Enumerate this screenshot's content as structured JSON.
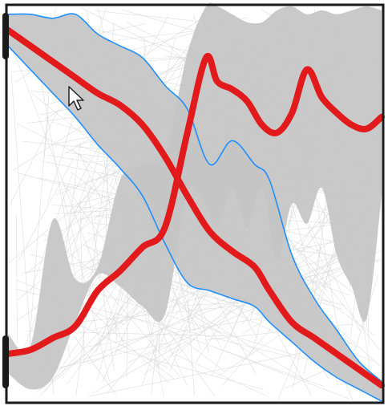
{
  "colors": {
    "background": "#ffffff",
    "frame": "#1a1a1a",
    "band_fill": "#c4c4c4",
    "band_edge": "#1e90ff",
    "mean_line": "#e31a1c",
    "background_traces": "#dadada",
    "edge_handles": "#1a1a1a"
  },
  "chart_data": {
    "type": "line",
    "title": "",
    "xlabel": "",
    "ylabel": "",
    "grid": false,
    "legend": "none",
    "xlim": [
      0,
      1
    ],
    "ylim": [
      0,
      1
    ],
    "axis_ticks": "none",
    "pointer": "arrow-cursor",
    "edge_handles": [
      "left-top",
      "left-bottom"
    ],
    "background_traces": {
      "count": 300
    },
    "series": [
      {
        "role": "descending-mean",
        "x": [
          0.0,
          0.06,
          0.12,
          0.18,
          0.24,
          0.3,
          0.36,
          0.42,
          0.48,
          0.54,
          0.6,
          0.66,
          0.7,
          0.76,
          0.82,
          0.88,
          0.94,
          1.0
        ],
        "y": [
          0.94,
          0.9,
          0.86,
          0.82,
          0.78,
          0.75,
          0.7,
          0.62,
          0.52,
          0.43,
          0.38,
          0.34,
          0.28,
          0.2,
          0.16,
          0.12,
          0.08,
          0.04
        ],
        "lower": [
          0.9,
          0.84,
          0.78,
          0.72,
          0.65,
          0.59,
          0.52,
          0.4,
          0.3,
          0.28,
          0.26,
          0.24,
          0.2,
          0.15,
          0.1,
          0.06,
          0.03,
          0.0
        ],
        "upper": [
          0.98,
          0.98,
          0.97,
          0.98,
          0.93,
          0.9,
          0.87,
          0.8,
          0.74,
          0.6,
          0.66,
          0.6,
          0.56,
          0.37,
          0.26,
          0.18,
          0.1,
          0.05
        ]
      },
      {
        "role": "ascending-mean",
        "x": [
          0.0,
          0.06,
          0.12,
          0.18,
          0.24,
          0.3,
          0.36,
          0.42,
          0.48,
          0.53,
          0.56,
          0.6,
          0.64,
          0.68,
          0.72,
          0.76,
          0.8,
          0.84,
          0.88,
          0.92,
          0.96,
          1.0
        ],
        "y": [
          0.12,
          0.13,
          0.16,
          0.19,
          0.28,
          0.33,
          0.39,
          0.44,
          0.68,
          0.87,
          0.81,
          0.79,
          0.76,
          0.7,
          0.68,
          0.73,
          0.84,
          0.77,
          0.73,
          0.7,
          0.69,
          0.72
        ],
        "lower": [
          0.07,
          0.03,
          0.06,
          0.2,
          0.32,
          0.29,
          0.24,
          0.22,
          0.53,
          0.49,
          0.44,
          0.54,
          0.44,
          0.54,
          0.36,
          0.5,
          0.45,
          0.54,
          0.37,
          0.29,
          0.21,
          0.52
        ],
        "upper": [
          0.17,
          0.14,
          0.46,
          0.31,
          0.34,
          0.56,
          0.6,
          0.63,
          0.88,
          1.0,
          1.0,
          0.98,
          0.96,
          0.96,
          0.99,
          1.0,
          0.98,
          0.99,
          0.98,
          0.99,
          1.0,
          0.99
        ]
      }
    ]
  }
}
